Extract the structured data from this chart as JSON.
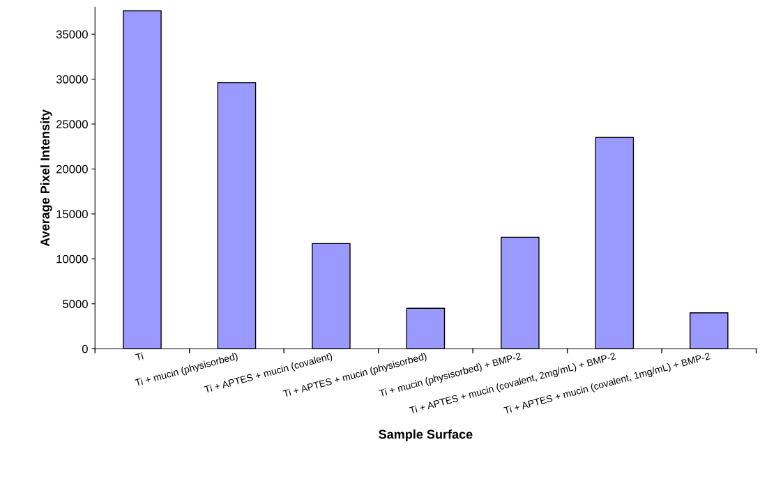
{
  "chart_data": {
    "type": "bar",
    "xlabel": "Sample Surface",
    "ylabel": "Average Pixel Intensity",
    "categories": [
      "Ti",
      "Ti + mucin (physisorbed)",
      "Ti + APTES + mucin (covalent)",
      "Ti + APTES + mucin (physisorbed)",
      "Ti + mucin (physisorbed) + BMP-2",
      "Ti + APTES + mucin (covalent, 2mg/mL) + BMP-2",
      "Ti + APTES + mucin (covalent, 1mg/mL) + BMP-2"
    ],
    "values": [
      37600,
      29600,
      11700,
      4500,
      12400,
      23500,
      4000
    ],
    "color": "#9999ff",
    "ylim": [
      0,
      38000
    ],
    "yticks": [
      0,
      5000,
      10000,
      15000,
      20000,
      25000,
      30000,
      35000
    ],
    "grid": false
  }
}
